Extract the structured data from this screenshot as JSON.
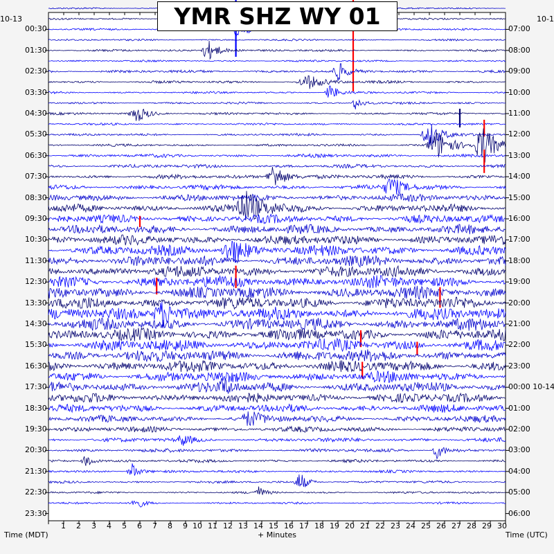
{
  "title": "YMR SHZ WY 01",
  "chart_data": {
    "type": "helicorder",
    "title": "YMR SHZ WY 01",
    "left_date_fragment": "10-13",
    "right_date_fragment": "10-1",
    "left_tick_labels": [
      "00:30",
      "01:30",
      "02:30",
      "03:30",
      "04:30",
      "05:30",
      "06:30",
      "07:30",
      "08:30",
      "09:30",
      "10:30",
      "11:30",
      "12:30",
      "13:30",
      "14:30",
      "15:30",
      "16:30",
      "17:30",
      "18:30",
      "19:30",
      "20:30",
      "21:30",
      "22:30",
      "23:30"
    ],
    "right_tick_labels": [
      "07:00",
      "08:00",
      "09:00",
      "10:00",
      "11:00",
      "12:00",
      "13:00",
      "14:00",
      "15:00",
      "16:00",
      "17:00",
      "18:00",
      "19:00",
      "20:00",
      "21:00",
      "22:00",
      "23:00",
      "00:00 10-14",
      "01:00",
      "02:00",
      "03:00",
      "04:00",
      "05:00",
      "06:00"
    ],
    "x_tick_labels": [
      "1",
      "2",
      "3",
      "4",
      "5",
      "6",
      "7",
      "8",
      "9",
      "10",
      "11",
      "12",
      "13",
      "14",
      "15",
      "16",
      "17",
      "18",
      "19",
      "20",
      "21",
      "22",
      "23",
      "24",
      "25",
      "26",
      "27",
      "28",
      "29",
      "30"
    ],
    "xlim": [
      0,
      30
    ],
    "xlabel": "+ Minutes",
    "ylabel_left": "Time (MDT)",
    "ylabel_right": "Time (UTC)",
    "rows_per_hour": 2,
    "trace_count": 48,
    "trace_colors": [
      "#0000cc",
      "#00006e",
      "#0000ff"
    ],
    "event_color": "#ff0000",
    "noise_profile": [
      1.5,
      1.5,
      1.6,
      1.5,
      1.8,
      1.6,
      2.5,
      2.2,
      1.8,
      1.8,
      2.0,
      1.8,
      2.0,
      2.0,
      2.8,
      3.0,
      3.5,
      4.0,
      6.0,
      6.5,
      7.0,
      7.5,
      8.0,
      8.5,
      9.0,
      9.5,
      10.0,
      10.0,
      10.0,
      10.0,
      10.0,
      10.0,
      10.0,
      10.0,
      9.5,
      9.0,
      8.5,
      8.0,
      6.5,
      5.5,
      4.5,
      3.5,
      3.0,
      2.5,
      2.2,
      2.0,
      1.8,
      1.6
    ],
    "events": [
      {
        "row": 0,
        "minute": 12.3,
        "amplitude": 70,
        "duration": 0.3,
        "type": "spike",
        "color": "#0000ff"
      },
      {
        "row": 0,
        "minute": 20.0,
        "amplitude": 120,
        "duration": 0.4,
        "type": "spike",
        "color": "#ff0000"
      },
      {
        "row": 2,
        "minute": 12.5,
        "amplitude": 20,
        "duration": 1.0,
        "type": "burst"
      },
      {
        "row": 4,
        "minute": 10.5,
        "amplitude": 15,
        "duration": 1.5,
        "type": "burst"
      },
      {
        "row": 6,
        "minute": 19.0,
        "amplitude": 14,
        "duration": 1.0,
        "type": "burst"
      },
      {
        "row": 7,
        "minute": 17.0,
        "amplitude": 10,
        "duration": 2.0,
        "type": "burst"
      },
      {
        "row": 8,
        "minute": 18.5,
        "amplitude": 12,
        "duration": 1.0,
        "type": "burst"
      },
      {
        "row": 9,
        "minute": 20.2,
        "amplitude": 12,
        "duration": 0.8,
        "type": "burst"
      },
      {
        "row": 10,
        "minute": 5.8,
        "amplitude": 12,
        "duration": 1.5,
        "type": "burst"
      },
      {
        "row": 10,
        "minute": 27.0,
        "amplitude": 20,
        "duration": 0.5,
        "type": "spike"
      },
      {
        "row": 11,
        "minute": 28.6,
        "amplitude": 18,
        "duration": 0.5,
        "type": "spike",
        "color": "#ff0000"
      },
      {
        "row": 12,
        "minute": 25.0,
        "amplitude": 20,
        "duration": 1.5,
        "type": "burst"
      },
      {
        "row": 13,
        "minute": 28.5,
        "amplitude": 30,
        "duration": 1.5,
        "type": "burst"
      },
      {
        "row": 13,
        "minute": 25.5,
        "amplitude": 22,
        "duration": 2.0,
        "type": "burst"
      },
      {
        "row": 14,
        "minute": 28.6,
        "amplitude": 25,
        "duration": 0.4,
        "type": "spike",
        "color": "#ff0000"
      },
      {
        "row": 16,
        "minute": 14.8,
        "amplitude": 20,
        "duration": 1.5,
        "type": "burst"
      },
      {
        "row": 17,
        "minute": 22.5,
        "amplitude": 16,
        "duration": 1.5,
        "type": "burst"
      },
      {
        "row": 19,
        "minute": 13.0,
        "amplitude": 22,
        "duration": 2.5,
        "type": "burst"
      },
      {
        "row": 20,
        "minute": 6.0,
        "amplitude": 12,
        "duration": 0.3,
        "type": "spike",
        "color": "#ff0000"
      },
      {
        "row": 23,
        "minute": 12.0,
        "amplitude": 18,
        "duration": 2.0,
        "type": "burst"
      },
      {
        "row": 25,
        "minute": 12.3,
        "amplitude": 24,
        "duration": 0.3,
        "type": "spike",
        "color": "#ff0000"
      },
      {
        "row": 26,
        "minute": 7.1,
        "amplitude": 18,
        "duration": 0.3,
        "type": "spike",
        "color": "#ff0000"
      },
      {
        "row": 27,
        "minute": 25.7,
        "amplitude": 22,
        "duration": 0.3,
        "type": "spike",
        "color": "#ff0000"
      },
      {
        "row": 29,
        "minute": 7.5,
        "amplitude": 20,
        "duration": 2.0,
        "type": "burst"
      },
      {
        "row": 31,
        "minute": 20.5,
        "amplitude": 18,
        "duration": 0.3,
        "type": "spike",
        "color": "#ff0000"
      },
      {
        "row": 32,
        "minute": 24.2,
        "amplitude": 14,
        "duration": 0.3,
        "type": "spike",
        "color": "#ff0000"
      },
      {
        "row": 34,
        "minute": 20.6,
        "amplitude": 18,
        "duration": 0.3,
        "type": "spike",
        "color": "#ff0000"
      },
      {
        "row": 36,
        "minute": 11.5,
        "amplitude": 12,
        "duration": 1.0,
        "type": "burst"
      },
      {
        "row": 39,
        "minute": 13.2,
        "amplitude": 10,
        "duration": 1.5,
        "type": "burst"
      },
      {
        "row": 41,
        "minute": 8.8,
        "amplitude": 8,
        "duration": 1.0,
        "type": "burst"
      },
      {
        "row": 42,
        "minute": 25.5,
        "amplitude": 12,
        "duration": 1.0,
        "type": "burst"
      },
      {
        "row": 43,
        "minute": 2.5,
        "amplitude": 10,
        "duration": 1.0,
        "type": "burst"
      },
      {
        "row": 44,
        "minute": 5.5,
        "amplitude": 12,
        "duration": 1.0,
        "type": "burst"
      },
      {
        "row": 45,
        "minute": 16.5,
        "amplitude": 15,
        "duration": 1.0,
        "type": "burst"
      },
      {
        "row": 46,
        "minute": 13.8,
        "amplitude": 8,
        "duration": 0.8,
        "type": "burst"
      },
      {
        "row": 47,
        "minute": 5.7,
        "amplitude": 10,
        "duration": 1.0,
        "type": "burst"
      }
    ]
  }
}
